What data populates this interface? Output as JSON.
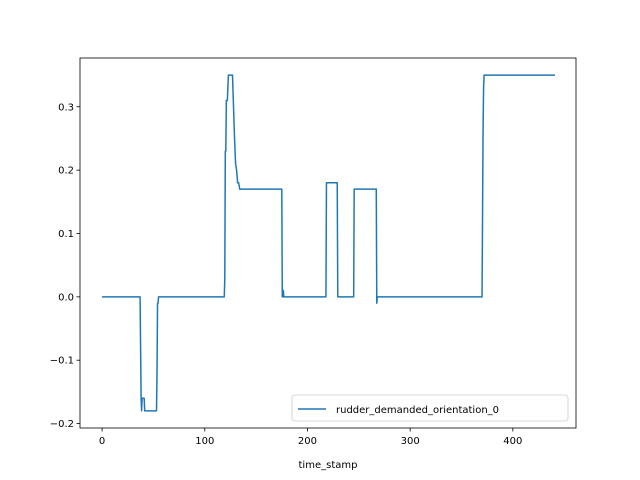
{
  "chart_data": {
    "type": "line",
    "title": "",
    "xlabel": "time_stamp",
    "ylabel": "",
    "xlim": [
      -21.5,
      461.5
    ],
    "ylim": [
      -0.207,
      0.377
    ],
    "xticks": [
      0,
      100,
      200,
      300,
      400
    ],
    "xtick_labels": [
      "0",
      "100",
      "200",
      "300",
      "400"
    ],
    "yticks": [
      -0.2,
      -0.1,
      0.0,
      0.1,
      0.2,
      0.3
    ],
    "ytick_labels": [
      "−0.2",
      "−0.1",
      "0.0",
      "0.1",
      "0.2",
      "0.3"
    ],
    "grid": false,
    "legend": {
      "placement": "lower-right"
    },
    "series": [
      {
        "name": "rudder_demanded_orientation_0",
        "color": "#1f77b4",
        "x": [
          0,
          37,
          37.5,
          38,
          38.5,
          39,
          41,
          41.5,
          42,
          43,
          53,
          53.5,
          54,
          54.5,
          55,
          56,
          119,
          119.5,
          120,
          120.5,
          121,
          122,
          123,
          124,
          127,
          128,
          129,
          130,
          131,
          132,
          133,
          134,
          175,
          175.5,
          176,
          176.5,
          177,
          218,
          218.5,
          219,
          229,
          229.5,
          230,
          245,
          245.5,
          246,
          267,
          267.5,
          268,
          268.5,
          370,
          370.5,
          371,
          371.5,
          372,
          373,
          441
        ],
        "y": [
          0.0,
          0.0,
          -0.08,
          -0.16,
          -0.18,
          -0.16,
          -0.16,
          -0.18,
          -0.18,
          -0.18,
          -0.18,
          -0.12,
          -0.01,
          -0.01,
          0.0,
          0.0,
          0.0,
          0.03,
          0.23,
          0.23,
          0.31,
          0.31,
          0.35,
          0.35,
          0.35,
          0.3,
          0.25,
          0.21,
          0.2,
          0.18,
          0.18,
          0.17,
          0.17,
          0.0,
          0.0,
          0.01,
          0.0,
          0.0,
          0.18,
          0.18,
          0.18,
          0.0,
          0.0,
          0.0,
          0.17,
          0.17,
          0.17,
          -0.01,
          0.0,
          0.0,
          0.0,
          0.13,
          0.26,
          0.33,
          0.35,
          0.35,
          0.35
        ]
      }
    ]
  }
}
